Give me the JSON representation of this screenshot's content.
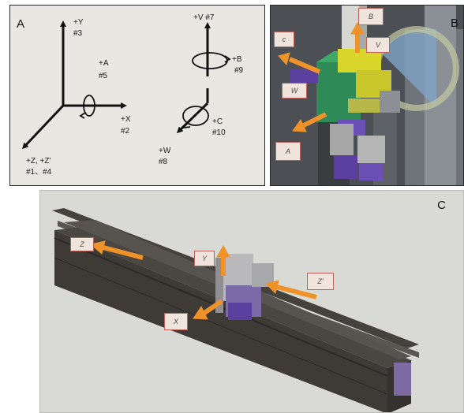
{
  "panel_a": {
    "letter": "A",
    "labels": {
      "y": "+Y",
      "y_num": "#3",
      "a": "+A",
      "a_num": "#5",
      "x": "+X",
      "x_num": "#2",
      "z": "+Z, +Z'",
      "z_num": "#1、#4",
      "v": "+V #7",
      "b": "+B",
      "b_num": "#9",
      "c": "+C",
      "c_num": "#10",
      "w": "+W",
      "w_num": "#8"
    }
  },
  "panel_b": {
    "letter": "B",
    "tags": {
      "b": "B",
      "v": "V",
      "c": "c",
      "w": "W",
      "a": "A"
    }
  },
  "panel_c": {
    "letter": "C",
    "tags": {
      "z": "Z",
      "y": "Y",
      "z_prime": "Z'",
      "x": "X"
    }
  },
  "colors": {
    "arrow_orange": "#f0922a",
    "tag_border": "#c0605a",
    "tag_fill": "#f1e4dd",
    "rail_dark": "#3e3b37",
    "module_green": "#2e8b57",
    "module_yellow": "#d8d62a",
    "module_purple": "#5a3f9e"
  }
}
